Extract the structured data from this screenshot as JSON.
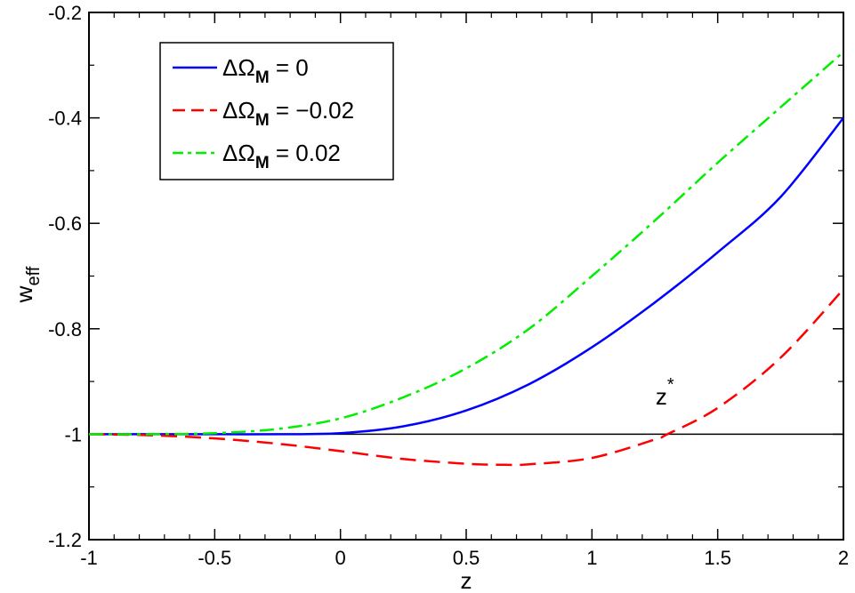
{
  "chart_data": {
    "type": "line",
    "xlabel_main": "z",
    "ylabel_main": "w",
    "ylabel_sub": "eff",
    "xlim": [
      -1,
      2
    ],
    "ylim": [
      -1.2,
      -0.2
    ],
    "x_ticks": [
      "-1",
      "-0.5",
      "0",
      "0.5",
      "1",
      "1.5",
      "2"
    ],
    "y_ticks": [
      "-0.2",
      "-0.4",
      "-0.6",
      "-0.8",
      "-1",
      "-1.2"
    ],
    "x_tick_values": [
      -1,
      -0.5,
      0,
      0.5,
      1,
      1.5,
      2
    ],
    "y_tick_values": [
      -0.2,
      -0.4,
      -0.6,
      -0.8,
      -1.0,
      -1.2
    ],
    "legend_placement": "top-left",
    "grid": false,
    "reference_line": {
      "y": -1,
      "color": "#000000"
    },
    "annotation": {
      "text": "z",
      "superscript": "*",
      "x": 1.29,
      "y": -0.93
    },
    "series": [
      {
        "name_prefix": "ΔΩ",
        "name_sub": "M",
        "name_suffix": " = 0",
        "color": "#0000ff",
        "dash": "solid",
        "x": [
          -1,
          -0.75,
          -0.5,
          -0.25,
          0,
          0.25,
          0.5,
          0.75,
          1,
          1.25,
          1.5,
          1.75,
          2
        ],
        "y": [
          -1.0,
          -1.0,
          -1.0,
          -1.0,
          -0.998,
          -0.985,
          -0.955,
          -0.905,
          -0.835,
          -0.75,
          -0.655,
          -0.55,
          -0.4
        ]
      },
      {
        "name_prefix": "ΔΩ",
        "name_sub": "M",
        "name_suffix": " = −0.02",
        "color": "#ff0000",
        "dash": "dashed",
        "x": [
          -1,
          -0.75,
          -0.5,
          -0.25,
          0,
          0.25,
          0.5,
          0.65,
          0.75,
          1,
          1.25,
          1.3,
          1.5,
          1.75,
          2
        ],
        "y": [
          -1.0,
          -1.002,
          -1.008,
          -1.018,
          -1.032,
          -1.047,
          -1.056,
          -1.058,
          -1.057,
          -1.045,
          -1.01,
          -1.0,
          -0.95,
          -0.855,
          -0.725
        ]
      },
      {
        "name_prefix": "ΔΩ",
        "name_sub": "M",
        "name_suffix": " = 0.02",
        "color": "#00ee00",
        "dash": "dashdot",
        "x": [
          -1,
          -0.75,
          -0.5,
          -0.25,
          0,
          0.25,
          0.5,
          0.75,
          1,
          1.25,
          1.5,
          1.75,
          2
        ],
        "y": [
          -1.0,
          -1.0,
          -0.998,
          -0.99,
          -0.97,
          -0.93,
          -0.875,
          -0.8,
          -0.7,
          -0.595,
          -0.485,
          -0.38,
          -0.275
        ]
      }
    ]
  }
}
